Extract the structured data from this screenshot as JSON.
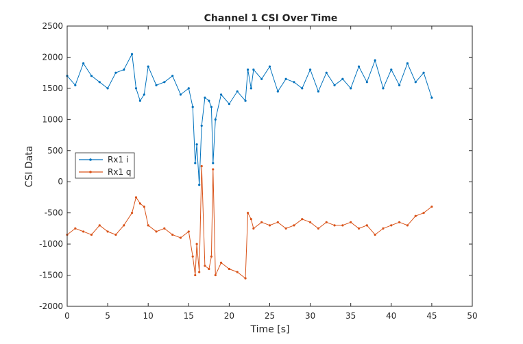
{
  "chart_data": {
    "type": "line",
    "title": "Channel 1 CSI Over Time",
    "xlabel": "Time [s]",
    "ylabel": "CSI Data",
    "xlim": [
      0,
      50
    ],
    "ylim": [
      -2000,
      2500
    ],
    "xticks": [
      0,
      5,
      10,
      15,
      20,
      25,
      30,
      35,
      40,
      45,
      50
    ],
    "yticks": [
      -2000,
      -1500,
      -1000,
      -500,
      0,
      500,
      1000,
      1500,
      2000,
      2500
    ],
    "grid": false,
    "legend_position": "middle-left",
    "marker": "point",
    "x": [
      0,
      1,
      2,
      3,
      4,
      5,
      6,
      7,
      8,
      8.5,
      9,
      9.5,
      10,
      11,
      12,
      13,
      14,
      15,
      15.5,
      15.8,
      16,
      16.3,
      16.6,
      17,
      17.5,
      17.8,
      18,
      18.3,
      19,
      20,
      21,
      22,
      22.3,
      22.7,
      23,
      24,
      25,
      26,
      27,
      28,
      29,
      30,
      31,
      32,
      33,
      34,
      35,
      36,
      37,
      38,
      39,
      40,
      41,
      42,
      43,
      44,
      45
    ],
    "series": [
      {
        "name": "Rx1 i",
        "color": "#0072BD",
        "values": [
          1700,
          1550,
          1900,
          1700,
          1600,
          1500,
          1750,
          1800,
          2050,
          1500,
          1300,
          1400,
          1850,
          1550,
          1600,
          1700,
          1400,
          1500,
          1200,
          300,
          600,
          -50,
          900,
          1350,
          1300,
          1200,
          300,
          1000,
          1400,
          1250,
          1450,
          1300,
          1800,
          1500,
          1800,
          1650,
          1850,
          1450,
          1650,
          1600,
          1500,
          1800,
          1450,
          1750,
          1550,
          1650,
          1500,
          1850,
          1600,
          1950,
          1500,
          1800,
          1550,
          1900,
          1600,
          1750,
          1350
        ]
      },
      {
        "name": "Rx1 q",
        "color": "#D95319",
        "values": [
          -850,
          -750,
          -800,
          -850,
          -700,
          -800,
          -850,
          -700,
          -500,
          -250,
          -350,
          -400,
          -700,
          -800,
          -750,
          -850,
          -900,
          -800,
          -1200,
          -1500,
          -1000,
          -1450,
          250,
          -1350,
          -1400,
          -1200,
          200,
          -1500,
          -1300,
          -1400,
          -1450,
          -1550,
          -500,
          -600,
          -750,
          -650,
          -700,
          -650,
          -750,
          -700,
          -600,
          -650,
          -750,
          -650,
          -700,
          -700,
          -650,
          -750,
          -700,
          -850,
          -750,
          -700,
          -650,
          -700,
          -550,
          -500,
          -400
        ]
      }
    ]
  }
}
